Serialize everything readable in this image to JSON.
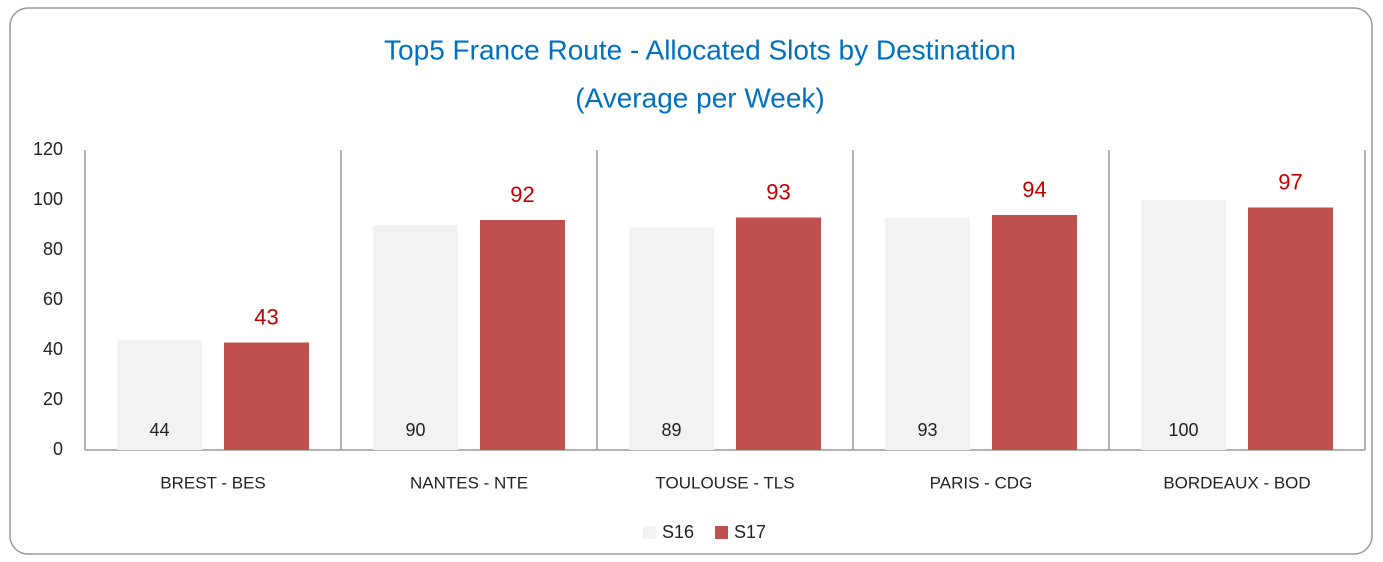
{
  "chart_data": {
    "type": "bar",
    "title": "Top5 France Route - Allocated Slots by Destination",
    "subtitle": "(Average per Week)",
    "categories": [
      "BREST - BES",
      "NANTES - NTE",
      "TOULOUSE - TLS",
      "PARIS - CDG",
      "BORDEAUX - BOD"
    ],
    "series": [
      {
        "name": "S16",
        "color": "#f2f2f2",
        "values": [
          44,
          90,
          89,
          93,
          100
        ]
      },
      {
        "name": "S17",
        "color": "#c0504d",
        "values": [
          43,
          92,
          93,
          94,
          97
        ]
      }
    ],
    "ylim": [
      0,
      120
    ],
    "yticks": [
      0,
      20,
      40,
      60,
      80,
      100,
      120
    ],
    "grid": false,
    "legend": "bottom"
  }
}
